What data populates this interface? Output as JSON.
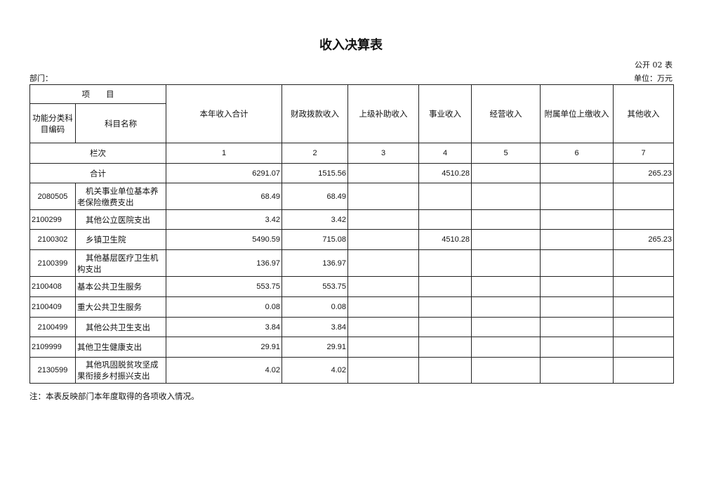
{
  "title": "收入决算表",
  "form_code": "公开 02 表",
  "department_label": "部门：",
  "unit_label": "单位：万元",
  "header": {
    "item": "项　　目",
    "code": "功能分类科目编码",
    "name": "科目名称",
    "columns": [
      "本年收入合计",
      "财政拨款收入",
      "上级补助收入",
      "事业收入",
      "经营收入",
      "附属单位上缴收入",
      "其他收入"
    ],
    "column_index_label": "栏次",
    "column_indices": [
      "1",
      "2",
      "3",
      "4",
      "5",
      "6",
      "7"
    ]
  },
  "total": {
    "label": "合计",
    "values": [
      "6291.07",
      "1515.56",
      "",
      "4510.28",
      "",
      "",
      "265.23"
    ]
  },
  "rows": [
    {
      "code": "2080505",
      "name": "机关事业单位基本养老保险缴费支出",
      "values": [
        "68.49",
        "68.49",
        "",
        "",
        "",
        "",
        ""
      ]
    },
    {
      "code": "2100299",
      "name": "其他公立医院支出",
      "values": [
        "3.42",
        "3.42",
        "",
        "",
        "",
        "",
        ""
      ]
    },
    {
      "code": "2100302",
      "name": "乡镇卫生院",
      "values": [
        "5490.59",
        "715.08",
        "",
        "4510.28",
        "",
        "",
        "265.23"
      ]
    },
    {
      "code": "2100399",
      "name": "其他基层医疗卫生机构支出",
      "values": [
        "136.97",
        "136.97",
        "",
        "",
        "",
        "",
        ""
      ]
    },
    {
      "code": "2100408",
      "name": "基本公共卫生服务",
      "values": [
        "553.75",
        "553.75",
        "",
        "",
        "",
        "",
        ""
      ]
    },
    {
      "code": "2100409",
      "name": "重大公共卫生服务",
      "values": [
        "0.08",
        "0.08",
        "",
        "",
        "",
        "",
        ""
      ]
    },
    {
      "code": "2100499",
      "name": "其他公共卫生支出",
      "values": [
        "3.84",
        "3.84",
        "",
        "",
        "",
        "",
        ""
      ]
    },
    {
      "code": "2109999",
      "name": "其他卫生健康支出",
      "values": [
        "29.91",
        "29.91",
        "",
        "",
        "",
        "",
        ""
      ]
    },
    {
      "code": "2130599",
      "name": "其他巩固脱贫攻坚成果衔接乡村振兴支出",
      "values": [
        "4.02",
        "4.02",
        "",
        "",
        "",
        "",
        ""
      ]
    }
  ],
  "note": "注：本表反映部门本年度取得的各项收入情况。"
}
